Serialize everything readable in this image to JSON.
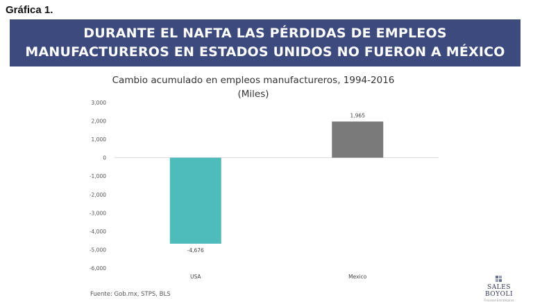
{
  "header": {
    "label": "Gráfica 1.",
    "banner_line1": "DURANTE EL NAFTA LAS PÉRDIDAS DE EMPLEOS",
    "banner_line2": "MANUFACTUREROS EN ESTADOS UNIDOS NO FUERON A MÉXICO",
    "banner_color": "#3d4a7e"
  },
  "chart_data": {
    "type": "bar",
    "title": "Cambio acumulado en empleos manufactureros, 1994-2016",
    "subtitle": "(Miles)",
    "categories": [
      "USA",
      "Mexico"
    ],
    "values": [
      -4676,
      1965
    ],
    "data_labels": [
      "-4,676",
      "1,965"
    ],
    "colors": [
      "#4fbcbc",
      "#7a7a7a"
    ],
    "ylim": [
      -6000,
      3000
    ],
    "yticks": [
      3000,
      2000,
      1000,
      0,
      -1000,
      -2000,
      -3000,
      -4000,
      -5000,
      -6000
    ],
    "ytick_labels": [
      "3,000",
      "2,000",
      "1,000",
      "0",
      "-1,000",
      "-2,000",
      "-3,000",
      "-4,000",
      "-5,000",
      "-6,000"
    ],
    "grid": false
  },
  "footer": {
    "source": "Fuente: Gob.mx, STPS, BLS",
    "logo_text": "SALES BOYOLI",
    "logo_sub": "Finanzas Estratégicas"
  }
}
